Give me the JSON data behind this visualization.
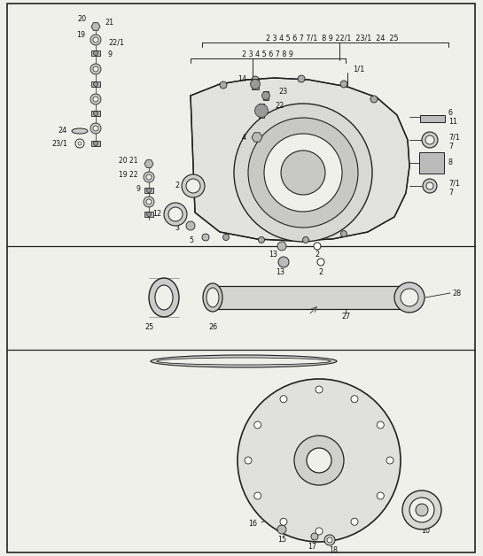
{
  "bg_color": "#f0f0eb",
  "line_color": "#222222",
  "text_color": "#111111"
}
